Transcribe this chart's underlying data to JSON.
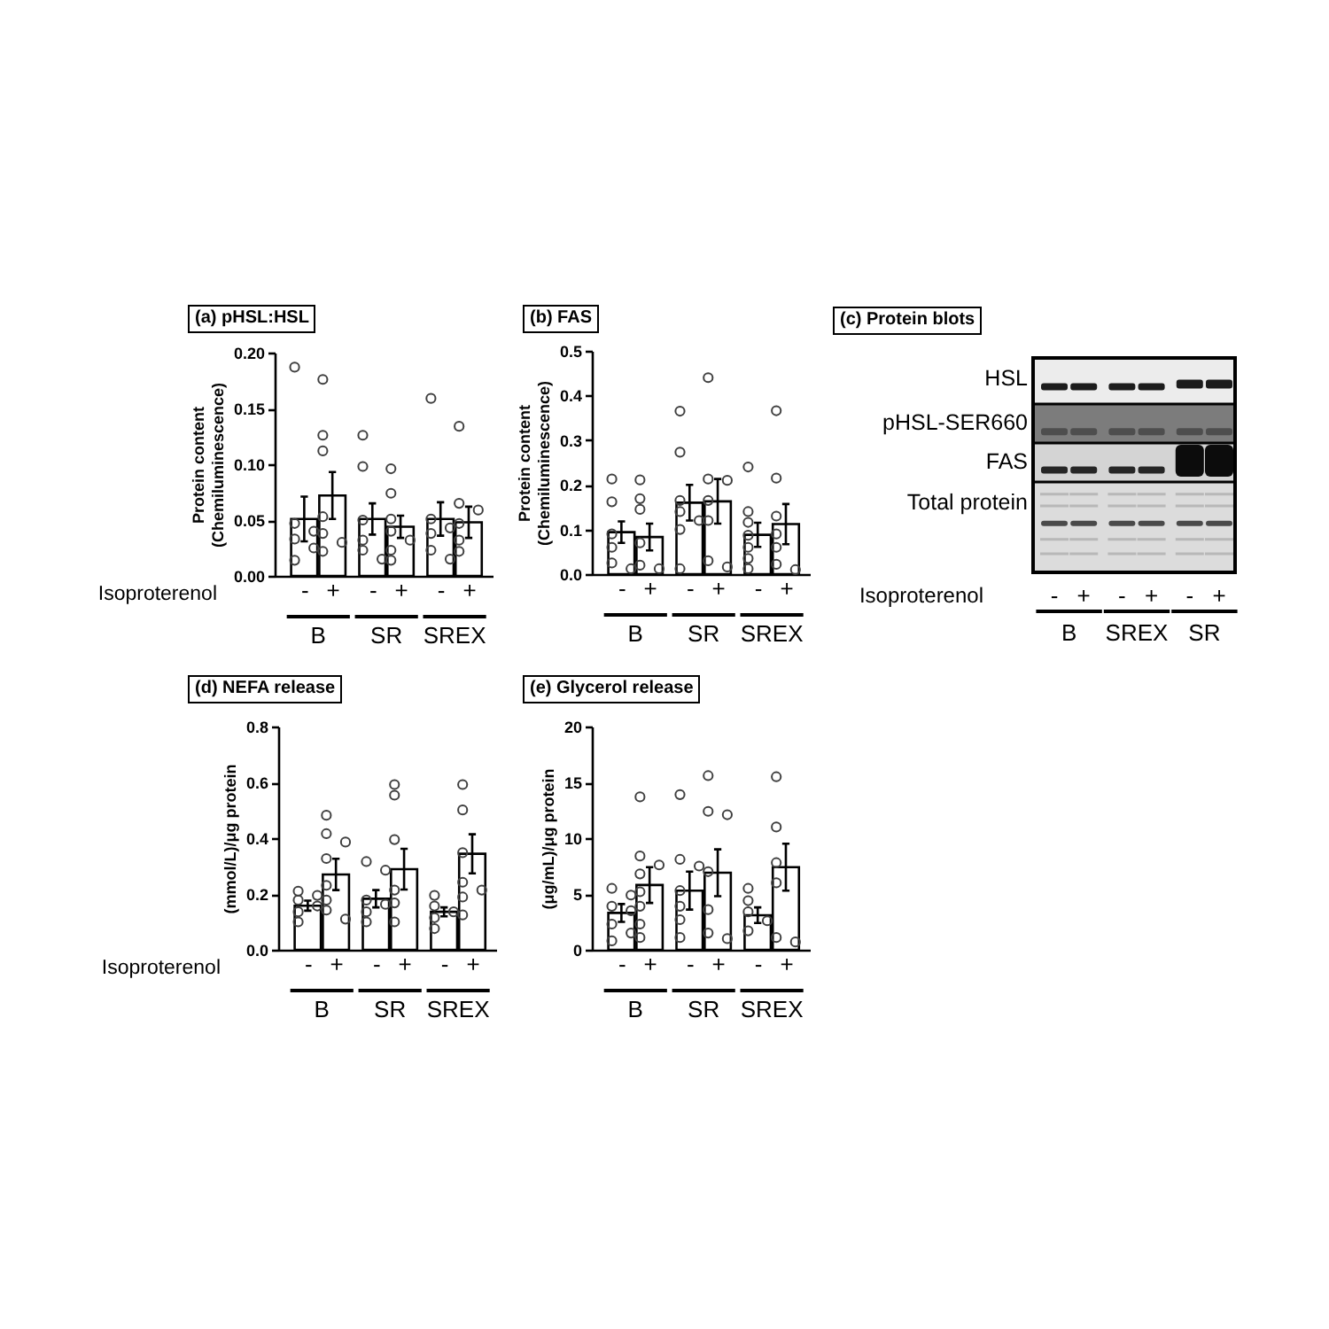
{
  "chart_data": [
    {
      "type": "bar",
      "title": "(a) pHSL:HSL",
      "xlabel": "Isoproterenol",
      "ylabel": "Protein content\n(Chemiluminescence)",
      "categories": [
        "-",
        "+",
        "-",
        "+",
        "-",
        "+"
      ],
      "annotations": [
        "B",
        "SR",
        "SREX"
      ],
      "ylim": [
        0,
        0.2
      ],
      "yticks": [
        {
          "value": 0,
          "label": "0.00"
        },
        0.05,
        {
          "value": 0.1,
          "label": "0.10"
        },
        0.15,
        {
          "value": 0.2,
          "label": "0.20"
        }
      ],
      "marker": "circle",
      "series": [
        {
          "type": "bar",
          "color": "#ffffff",
          "values": [
            0.051,
            0.072,
            0.051,
            0.044,
            0.051,
            0.048
          ],
          "errors": [
            0.02,
            0.021,
            0.014,
            0.01,
            0.015,
            0.014
          ]
        },
        {
          "type": "scatter",
          "color": "#404040",
          "values": [
            0.187,
            0.176,
            0.126,
            0.096,
            0.159,
            0.134
          ]
        },
        {
          "type": "scatter",
          "color": "#404040",
          "values": [
            0.047,
            0.126,
            0.098,
            0.074,
            0.051,
            0.065
          ]
        },
        {
          "type": "scatter",
          "color": "#404040",
          "values": [
            0.04,
            0.112,
            0.05,
            0.051,
            0.043,
            0.059
          ]
        },
        {
          "type": "scatter",
          "color": "#404040",
          "values": [
            0.033,
            0.053,
            0.032,
            0.04,
            0.038,
            0.047
          ]
        },
        {
          "type": "scatter",
          "color": "#404040",
          "values": [
            0.025,
            0.038,
            0.023,
            0.032,
            0.023,
            0.032
          ]
        },
        {
          "type": "scatter",
          "color": "#404040",
          "values": [
            0.014,
            0.03,
            0.015,
            0.023,
            0.015,
            0.022
          ]
        },
        {
          "type": "scatter",
          "color": "#404040",
          "values": [
            null,
            0.022,
            null,
            0.014,
            null,
            null
          ]
        }
      ]
    },
    {
      "type": "bar",
      "title": "(b) FAS",
      "ylabel": "Protein content\n(Chemiluminescence)",
      "categories": [
        "-",
        "+",
        "-",
        "+",
        "-",
        "+"
      ],
      "annotations": [
        "B",
        "SR",
        "SREX"
      ],
      "ylim": [
        0,
        0.5
      ],
      "yticks": [
        {
          "value": 0,
          "label": "0.0"
        },
        0.1,
        0.2,
        0.3,
        0.4,
        0.5
      ],
      "marker": "circle",
      "series": [
        {
          "type": "bar",
          "color": "#ffffff",
          "values": [
            0.094,
            0.083,
            0.16,
            0.163,
            0.088,
            0.112
          ],
          "errors": [
            0.024,
            0.03,
            0.04,
            0.05,
            0.027,
            0.045
          ]
        },
        {
          "type": "scatter",
          "color": "#404040",
          "values": [
            0.213,
            0.211,
            0.365,
            0.44,
            0.24,
            0.366
          ]
        },
        {
          "type": "scatter",
          "color": "#404040",
          "values": [
            0.162,
            0.169,
            0.273,
            0.213,
            0.14,
            0.215
          ]
        },
        {
          "type": "scatter",
          "color": "#404040",
          "values": [
            0.09,
            0.145,
            0.165,
            0.21,
            0.116,
            0.13
          ]
        },
        {
          "type": "scatter",
          "color": "#404040",
          "values": [
            0.06,
            0.07,
            0.14,
            0.165,
            0.087,
            0.09
          ]
        },
        {
          "type": "scatter",
          "color": "#404040",
          "values": [
            0.025,
            0.02,
            0.12,
            0.12,
            0.06,
            0.06
          ]
        },
        {
          "type": "scatter",
          "color": "#404040",
          "values": [
            0.012,
            0.012,
            0.1,
            0.03,
            0.035,
            0.022
          ]
        },
        {
          "type": "scatter",
          "color": "#404040",
          "values": [
            null,
            null,
            0.012,
            0.016,
            0.012,
            0.01
          ]
        }
      ]
    },
    {
      "type": "other",
      "title": "(c) Protein blots",
      "xlabel": "Isoproterenol",
      "categories": [
        "-",
        "+",
        "-",
        "+",
        "-",
        "+"
      ],
      "y_categories": [
        "HSL",
        "pHSL-SER660",
        "FAS",
        "Total protein"
      ],
      "annotations": [
        "B",
        "SREX",
        "SR"
      ]
    },
    {
      "type": "bar",
      "title": "(d) NEFA release",
      "xlabel": "Isoproterenol",
      "ylabel": "(mmol/L)/μg protein",
      "categories": [
        "-",
        "+",
        "-",
        "+",
        "-",
        "+"
      ],
      "annotations": [
        "B",
        "SR",
        "SREX"
      ],
      "ylim": [
        0,
        0.8
      ],
      "yticks": [
        {
          "value": 0,
          "label": "0.0"
        },
        0.2,
        0.4,
        0.6,
        0.8
      ],
      "marker": "circle",
      "series": [
        {
          "type": "bar",
          "color": "#ffffff",
          "values": [
            0.158,
            0.27,
            0.183,
            0.289,
            0.136,
            0.344
          ],
          "errors": [
            0.018,
            0.056,
            0.031,
            0.073,
            0.016,
            0.07
          ]
        },
        {
          "type": "scatter",
          "color": "#404040",
          "values": [
            0.21,
            0.482,
            0.316,
            0.592,
            0.195,
            0.592
          ]
        },
        {
          "type": "scatter",
          "color": "#404040",
          "values": [
            0.195,
            0.416,
            0.285,
            0.554,
            0.157,
            0.501
          ]
        },
        {
          "type": "scatter",
          "color": "#404040",
          "values": [
            0.178,
            0.386,
            0.178,
            0.395,
            0.136,
            0.348
          ]
        },
        {
          "type": "scatter",
          "color": "#404040",
          "values": [
            0.157,
            0.327,
            0.163,
            0.214,
            0.115,
            0.242
          ]
        },
        {
          "type": "scatter",
          "color": "#404040",
          "values": [
            0.136,
            0.231,
            0.136,
            0.168,
            0.076,
            0.214
          ]
        },
        {
          "type": "scatter",
          "color": "#404040",
          "values": [
            0.1,
            0.178,
            0.1,
            0.1,
            null,
            0.189
          ]
        },
        {
          "type": "scatter",
          "color": "#404040",
          "values": [
            null,
            0.142,
            null,
            null,
            null,
            0.125
          ]
        },
        {
          "type": "scatter",
          "color": "#404040",
          "values": [
            null,
            0.11,
            null,
            null,
            null,
            null
          ]
        }
      ]
    },
    {
      "type": "bar",
      "title": "(e) Glycerol release",
      "ylabel": "(μg/mL)/μg protein",
      "categories": [
        "-",
        "+",
        "-",
        "+",
        "-",
        "+"
      ],
      "annotations": [
        "B",
        "SR",
        "SREX"
      ],
      "ylim": [
        0,
        20
      ],
      "yticks": [
        0,
        5,
        10,
        15,
        20
      ],
      "marker": "circle",
      "series": [
        {
          "type": "bar",
          "color": "#ffffff",
          "values": [
            3.3,
            5.8,
            5.3,
            6.9,
            3.1,
            7.4
          ],
          "errors": [
            0.8,
            1.6,
            1.7,
            2.1,
            0.7,
            2.1
          ]
        },
        {
          "type": "scatter",
          "color": "#404040",
          "values": [
            5.5,
            13.7,
            13.9,
            15.6,
            5.5,
            15.5
          ]
        },
        {
          "type": "scatter",
          "color": "#404040",
          "values": [
            4.9,
            8.4,
            8.1,
            12.4,
            4.4,
            11.0
          ]
        },
        {
          "type": "scatter",
          "color": "#404040",
          "values": [
            3.9,
            7.6,
            7.5,
            12.1,
            3.4,
            7.8
          ]
        },
        {
          "type": "scatter",
          "color": "#404040",
          "values": [
            3.5,
            6.8,
            5.3,
            7.0,
            2.6,
            6.0
          ]
        },
        {
          "type": "scatter",
          "color": "#404040",
          "values": [
            2.3,
            5.2,
            3.9,
            3.6,
            1.7,
            1.1
          ]
        },
        {
          "type": "scatter",
          "color": "#404040",
          "values": [
            1.5,
            3.9,
            2.7,
            1.5,
            null,
            0.7
          ]
        },
        {
          "type": "scatter",
          "color": "#404040",
          "values": [
            0.8,
            2.3,
            1.1,
            1.0,
            null,
            null
          ]
        },
        {
          "type": "scatter",
          "color": "#404040",
          "values": [
            null,
            1.1,
            null,
            null,
            null,
            null
          ]
        }
      ]
    }
  ]
}
